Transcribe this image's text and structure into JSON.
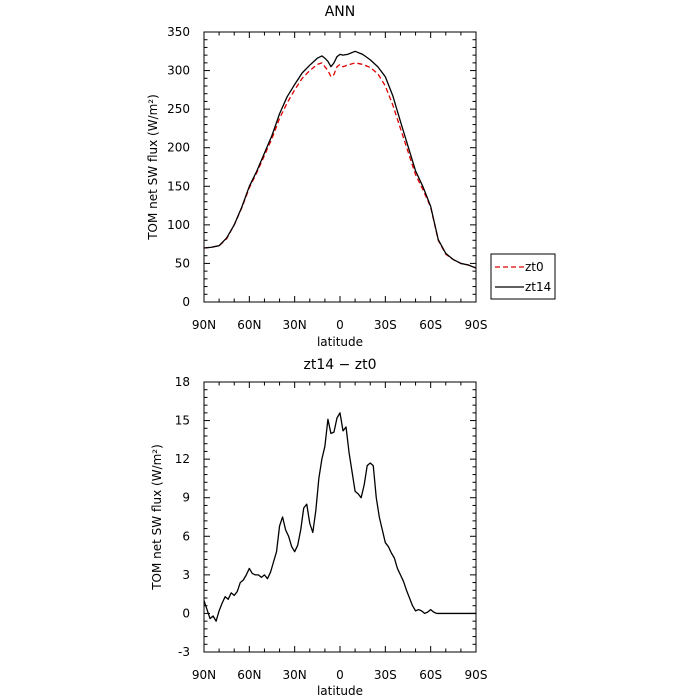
{
  "chart_data": [
    {
      "type": "line",
      "title": "ANN",
      "xlabel": "latitude",
      "ylabel": "TOM net SW flux (W/m²)",
      "xlim": [
        90,
        -90
      ],
      "ylim": [
        0,
        350
      ],
      "x_ticks": [
        90,
        60,
        30,
        0,
        -30,
        -60,
        -90
      ],
      "x_tick_labels": [
        "90N",
        "60N",
        "30N",
        "0",
        "30S",
        "60S",
        "90S"
      ],
      "y_ticks": [
        0,
        50,
        100,
        150,
        200,
        250,
        300,
        350
      ],
      "legend": "right",
      "series": [
        {
          "name": "zt0",
          "color": "#e00000",
          "dash": "dashed",
          "x": [
            90,
            85,
            80,
            75,
            70,
            65,
            60,
            55,
            50,
            45,
            40,
            35,
            30,
            25,
            20,
            15,
            12,
            10,
            8,
            6,
            4,
            2,
            0,
            -2,
            -5,
            -10,
            -15,
            -20,
            -25,
            -30,
            -35,
            -40,
            -45,
            -50,
            -55,
            -60,
            -65,
            -70,
            -75,
            -80,
            -85,
            -90
          ],
          "y": [
            70,
            71,
            73,
            82,
            100,
            122,
            148,
            168,
            190,
            212,
            238,
            258,
            275,
            290,
            300,
            308,
            310,
            305,
            300,
            292,
            295,
            305,
            308,
            305,
            307,
            310,
            308,
            304,
            296,
            280,
            255,
            225,
            195,
            165,
            145,
            123,
            80,
            62,
            55,
            50,
            48,
            44
          ]
        },
        {
          "name": "zt14",
          "color": "#000000",
          "dash": "solid",
          "x": [
            90,
            85,
            80,
            75,
            70,
            65,
            60,
            55,
            50,
            45,
            40,
            35,
            30,
            25,
            20,
            15,
            12,
            10,
            8,
            6,
            4,
            2,
            0,
            -2,
            -5,
            -10,
            -15,
            -20,
            -25,
            -30,
            -35,
            -40,
            -45,
            -50,
            -55,
            -60,
            -65,
            -70,
            -75,
            -80,
            -85,
            -90
          ],
          "y": [
            70,
            71,
            73,
            83,
            100,
            123,
            150,
            170,
            193,
            216,
            244,
            266,
            282,
            297,
            307,
            316,
            319,
            316,
            312,
            305,
            310,
            318,
            321,
            320,
            321,
            325,
            321,
            314,
            305,
            292,
            267,
            234,
            202,
            170,
            149,
            124,
            81,
            63,
            55,
            50,
            48,
            44
          ]
        }
      ]
    },
    {
      "type": "line",
      "title": "zt14 − zt0",
      "xlabel": "latitude",
      "ylabel": "TOM net SW flux (W/m²)",
      "xlim": [
        90,
        -90
      ],
      "ylim": [
        -3,
        18
      ],
      "x_ticks": [
        90,
        60,
        30,
        0,
        -30,
        -60,
        -90
      ],
      "x_tick_labels": [
        "90N",
        "60N",
        "30N",
        "0",
        "30S",
        "60S",
        "90S"
      ],
      "y_ticks": [
        -3,
        0,
        3,
        6,
        9,
        12,
        15,
        18
      ],
      "series": [
        {
          "color": "#000000",
          "dash": "solid",
          "x": [
            90,
            88,
            86,
            84,
            82,
            80,
            78,
            76,
            74,
            72,
            70,
            68,
            66,
            64,
            62,
            60,
            58,
            56,
            54,
            52,
            50,
            48,
            46,
            44,
            42,
            40,
            38,
            36,
            34,
            32,
            30,
            28,
            26,
            24,
            22,
            20,
            18,
            16,
            14,
            12,
            10,
            8,
            6,
            4,
            2,
            0,
            -2,
            -4,
            -6,
            -8,
            -10,
            -12,
            -14,
            -16,
            -18,
            -20,
            -22,
            -24,
            -26,
            -28,
            -30,
            -32,
            -34,
            -36,
            -38,
            -40,
            -42,
            -44,
            -46,
            -48,
            -50,
            -52,
            -54,
            -56,
            -58,
            -60,
            -62,
            -64,
            -66,
            -68,
            -70,
            -72,
            -74,
            -76,
            -78,
            -80,
            -82,
            -84,
            -86,
            -88,
            -90
          ],
          "y": [
            1.0,
            0.3,
            -0.4,
            -0.2,
            -0.6,
            0.2,
            0.8,
            1.3,
            1.1,
            1.6,
            1.4,
            1.7,
            2.4,
            2.6,
            3.0,
            3.5,
            3.1,
            3.0,
            3.0,
            2.8,
            3.0,
            2.7,
            3.2,
            4.0,
            4.8,
            6.8,
            7.5,
            6.5,
            6.0,
            5.2,
            4.8,
            5.3,
            6.5,
            8.2,
            8.5,
            7.0,
            6.3,
            8.0,
            10.5,
            12.0,
            13.0,
            15.1,
            14.0,
            14.1,
            15.2,
            15.6,
            14.2,
            14.5,
            12.5,
            11.0,
            9.5,
            9.3,
            9.0,
            10.0,
            11.5,
            11.7,
            11.5,
            9.0,
            7.5,
            6.5,
            5.5,
            5.2,
            4.7,
            4.3,
            3.5,
            3.0,
            2.5,
            1.8,
            1.2,
            0.6,
            0.2,
            0.3,
            0.2,
            0.0,
            0.1,
            0.3,
            0.1,
            0.0,
            0.0,
            0.0,
            0.0,
            0.0,
            0.0,
            0.0,
            0.0,
            0.0,
            0.0,
            0.0,
            0.0,
            0.0,
            0.0
          ]
        }
      ]
    }
  ]
}
